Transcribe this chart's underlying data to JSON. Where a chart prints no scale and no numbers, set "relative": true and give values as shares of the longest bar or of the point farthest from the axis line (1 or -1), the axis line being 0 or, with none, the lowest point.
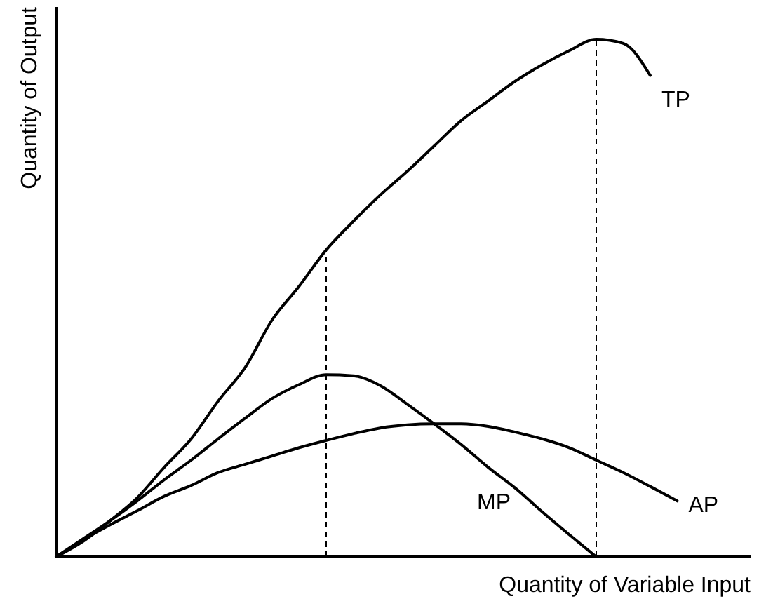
{
  "chart_data": {
    "type": "line",
    "relative": true,
    "xlabel": "Quantity of Variable Input",
    "ylabel": "Quantity of Output",
    "marker": "none",
    "line_style": "solid",
    "categories": [
      null,
      null,
      null,
      null,
      null,
      null,
      null,
      null,
      null,
      null,
      null,
      null,
      null,
      null,
      null,
      null,
      null,
      null,
      null,
      null,
      null,
      null,
      null,
      null
    ],
    "series": [
      {
        "name": "TP",
        "color": "#000000",
        "values": [
          0,
          0.03,
          0.07,
          0.114,
          0.173,
          0.228,
          0.301,
          0.366,
          0.458,
          0.523,
          0.593,
          0.648,
          0.699,
          0.745,
          0.794,
          0.843,
          0.881,
          0.919,
          0.951,
          0.978,
          1,
          0.992,
          0.93,
          null
        ]
      },
      {
        "name": "MP",
        "color": "#000000",
        "values": [
          0,
          0.035,
          0.07,
          0.108,
          0.149,
          0.187,
          0.228,
          0.268,
          0.306,
          0.333,
          0.352,
          0.35,
          0.331,
          0.295,
          0.257,
          0.217,
          0.173,
          0.133,
          0.087,
          0.043,
          0,
          null,
          null,
          null
        ]
      },
      {
        "name": "AP",
        "color": "#000000",
        "values": [
          0,
          0.033,
          0.062,
          0.089,
          0.117,
          0.138,
          0.163,
          0.179,
          0.195,
          0.211,
          0.225,
          0.238,
          0.249,
          0.255,
          0.257,
          0.257,
          0.252,
          0.241,
          0.228,
          0.211,
          0.187,
          0.163,
          0.136,
          0.108
        ]
      }
    ]
  }
}
